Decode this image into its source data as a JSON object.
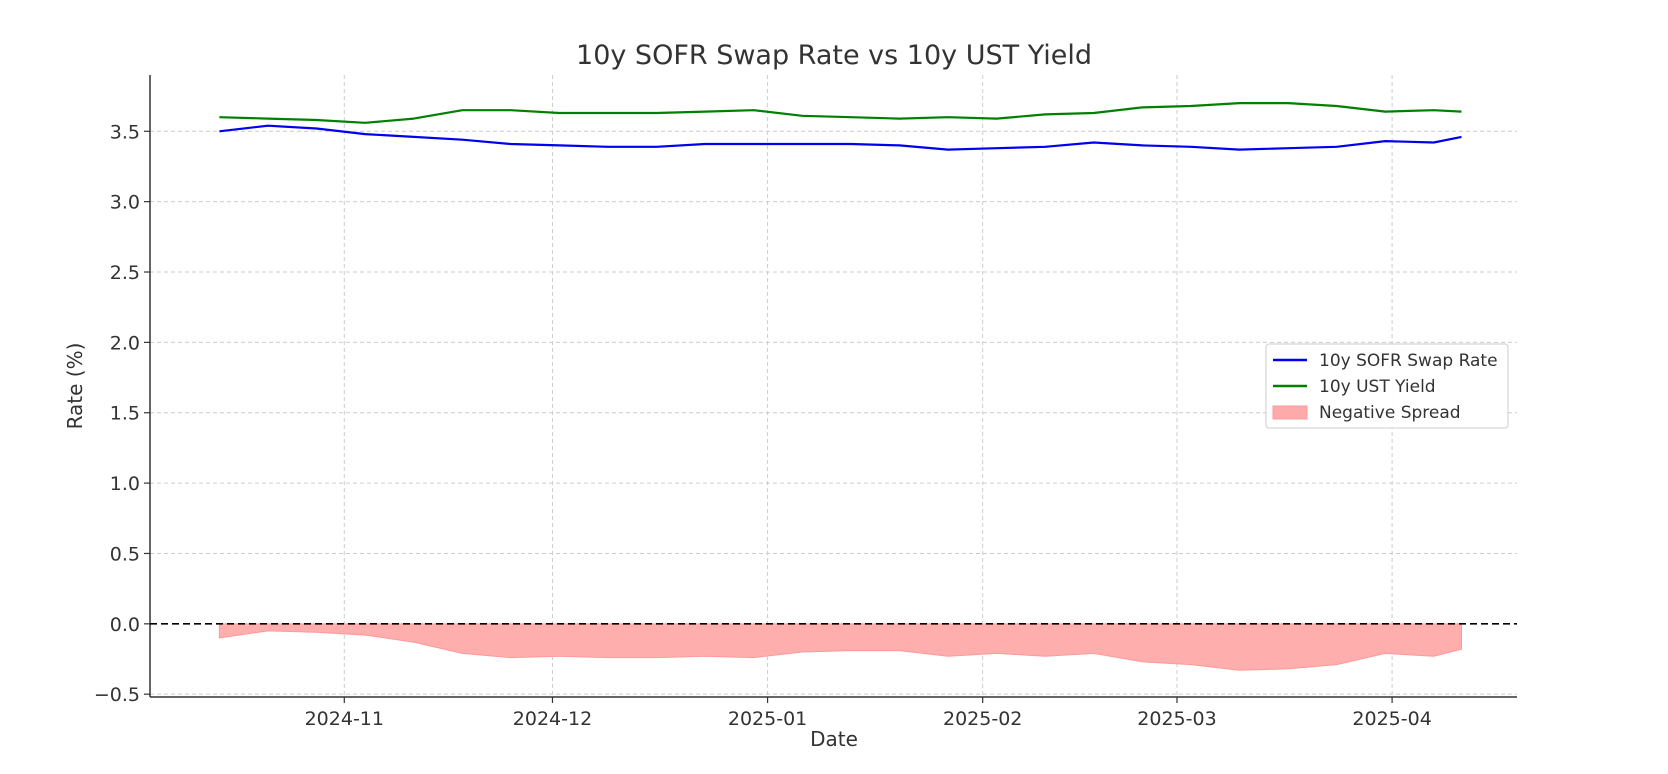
{
  "chart_data": {
    "type": "line",
    "title": "10y SOFR Swap Rate vs 10y UST Yield",
    "xlabel": "Date",
    "ylabel": "Rate (%)",
    "x_range": [
      "2024-10-04",
      "2025-04-19"
    ],
    "ylim": [
      -0.52,
      3.9
    ],
    "x_ticks": [
      "2024-11",
      "2024-12",
      "2025-01",
      "2025-02",
      "2025-03",
      "2025-04"
    ],
    "y_ticks": [
      "−0.5",
      "0.0",
      "0.5",
      "1.0",
      "1.5",
      "2.0",
      "2.5",
      "3.0",
      "3.5"
    ],
    "y_tick_values": [
      -0.5,
      0.0,
      0.5,
      1.0,
      1.5,
      2.0,
      2.5,
      3.0,
      3.5
    ],
    "grid": true,
    "legend_position": "center-right",
    "zero_line": {
      "y": 0.0,
      "style": "dashed",
      "color": "#000000"
    },
    "series": [
      {
        "name": "10y SOFR Swap Rate",
        "color": "#0000ee",
        "x": [
          "2024-10-14",
          "2024-10-21",
          "2024-10-28",
          "2024-11-04",
          "2024-11-11",
          "2024-11-18",
          "2024-11-25",
          "2024-12-02",
          "2024-12-09",
          "2024-12-16",
          "2024-12-23",
          "2024-12-30",
          "2025-01-06",
          "2025-01-13",
          "2025-01-20",
          "2025-01-27",
          "2025-02-03",
          "2025-02-10",
          "2025-02-17",
          "2025-02-24",
          "2025-03-03",
          "2025-03-10",
          "2025-03-17",
          "2025-03-24",
          "2025-03-31",
          "2025-04-07",
          "2025-04-11"
        ],
        "values": [
          3.5,
          3.54,
          3.52,
          3.48,
          3.46,
          3.44,
          3.41,
          3.4,
          3.39,
          3.39,
          3.41,
          3.41,
          3.41,
          3.41,
          3.4,
          3.37,
          3.38,
          3.39,
          3.42,
          3.4,
          3.39,
          3.37,
          3.38,
          3.39,
          3.43,
          3.42,
          3.46
        ]
      },
      {
        "name": "10y UST Yield",
        "color": "#008000",
        "x": [
          "2024-10-14",
          "2024-10-21",
          "2024-10-28",
          "2024-11-04",
          "2024-11-11",
          "2024-11-18",
          "2024-11-25",
          "2024-12-02",
          "2024-12-09",
          "2024-12-16",
          "2024-12-23",
          "2024-12-30",
          "2025-01-06",
          "2025-01-13",
          "2025-01-20",
          "2025-01-27",
          "2025-02-03",
          "2025-02-10",
          "2025-02-17",
          "2025-02-24",
          "2025-03-03",
          "2025-03-10",
          "2025-03-17",
          "2025-03-24",
          "2025-03-31",
          "2025-04-07",
          "2025-04-11"
        ],
        "values": [
          3.6,
          3.59,
          3.58,
          3.56,
          3.59,
          3.65,
          3.65,
          3.63,
          3.63,
          3.63,
          3.64,
          3.65,
          3.61,
          3.6,
          3.59,
          3.6,
          3.59,
          3.62,
          3.63,
          3.67,
          3.68,
          3.7,
          3.7,
          3.68,
          3.64,
          3.65,
          3.64
        ]
      },
      {
        "name": "Negative Spread",
        "type": "area",
        "color": "#ffaaaa",
        "x": [
          "2024-10-14",
          "2024-10-21",
          "2024-10-28",
          "2024-11-04",
          "2024-11-11",
          "2024-11-18",
          "2024-11-25",
          "2024-12-02",
          "2024-12-09",
          "2024-12-16",
          "2024-12-23",
          "2024-12-30",
          "2025-01-06",
          "2025-01-13",
          "2025-01-20",
          "2025-01-27",
          "2025-02-03",
          "2025-02-10",
          "2025-02-17",
          "2025-02-24",
          "2025-03-03",
          "2025-03-10",
          "2025-03-17",
          "2025-03-24",
          "2025-03-31",
          "2025-04-07",
          "2025-04-11"
        ],
        "values": [
          -0.1,
          -0.05,
          -0.06,
          -0.08,
          -0.13,
          -0.21,
          -0.24,
          -0.23,
          -0.24,
          -0.24,
          -0.23,
          -0.24,
          -0.2,
          -0.19,
          -0.19,
          -0.23,
          -0.21,
          -0.23,
          -0.21,
          -0.27,
          -0.29,
          -0.33,
          -0.32,
          -0.29,
          -0.21,
          -0.23,
          -0.18
        ]
      }
    ]
  }
}
